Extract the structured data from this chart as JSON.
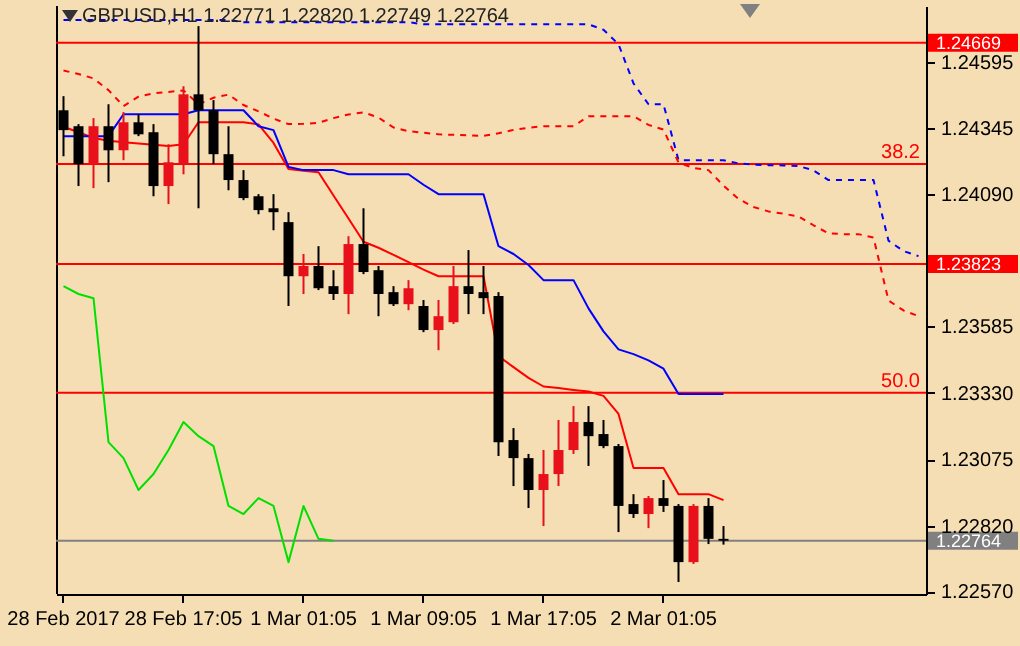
{
  "chart_data": {
    "type": "candlestick",
    "title": "GBPUSD,H1 1.22771 1.22820 1.22749 1.22764",
    "categories": [
      "28 Feb 2017",
      null,
      null,
      null,
      null,
      null,
      null,
      null,
      "28 Feb 17:05",
      null,
      null,
      null,
      null,
      null,
      null,
      null,
      "1 Mar 01:05",
      null,
      null,
      null,
      null,
      null,
      null,
      null,
      "1 Mar 09:05",
      null,
      null,
      null,
      null,
      null,
      null,
      null,
      "1 Mar 17:05",
      null,
      null,
      null,
      null,
      null,
      null,
      null,
      "2 Mar 01:05",
      null,
      null,
      null,
      null,
      null,
      null,
      null,
      null,
      null,
      null,
      null,
      null,
      null,
      null,
      null,
      null,
      null
    ],
    "ohlc": [
      [
        1.24411,
        1.24465,
        1.24235,
        1.24335
      ],
      [
        1.2435,
        1.24358,
        1.24121,
        1.24205
      ],
      [
        1.24205,
        1.24381,
        1.24113,
        1.2435
      ],
      [
        1.2435,
        1.24434,
        1.24136,
        1.24258
      ],
      [
        1.24258,
        1.24404,
        1.2422,
        1.24365
      ],
      [
        1.24365,
        1.24396,
        1.24312,
        1.24319
      ],
      [
        1.24327,
        1.24358,
        1.24082,
        1.24121
      ],
      [
        1.24121,
        1.24281,
        1.24052,
        1.24212
      ],
      [
        1.24205,
        1.24503,
        1.24166,
        1.24472
      ],
      [
        1.24472,
        1.24733,
        1.24036,
        1.24411
      ],
      [
        1.24411,
        1.2445,
        1.24205,
        1.24243
      ],
      [
        1.24243,
        1.2435,
        1.24105,
        1.24144
      ],
      [
        1.24144,
        1.24182,
        1.24067,
        1.24075
      ],
      [
        1.24082,
        1.2409,
        1.24013,
        1.24029
      ],
      [
        1.24036,
        1.2409,
        1.23952,
        1.24021
      ],
      [
        1.23983,
        1.24021,
        1.23662,
        1.23776
      ],
      [
        1.23776,
        1.23861,
        1.23708,
        1.23815
      ],
      [
        1.23815,
        1.23891,
        1.23723,
        1.2373
      ],
      [
        1.23738,
        1.23799,
        1.23685,
        1.23708
      ],
      [
        1.23708,
        1.23929,
        1.23631,
        1.23899
      ],
      [
        1.23899,
        1.24036,
        1.23784,
        1.23792
      ],
      [
        1.23799,
        1.23815,
        1.23623,
        1.23708
      ],
      [
        1.23715,
        1.23738,
        1.23662,
        1.23669
      ],
      [
        1.23669,
        1.23761,
        1.23646,
        1.2373
      ],
      [
        1.23662,
        1.23685,
        1.23562,
        1.2357
      ],
      [
        1.2357,
        1.23685,
        1.23493,
        1.23623
      ],
      [
        1.236,
        1.23815,
        1.23593,
        1.23738
      ],
      [
        1.23738,
        1.23876,
        1.23631,
        1.23708
      ],
      [
        1.23715,
        1.23815,
        1.23631,
        1.23692
      ],
      [
        1.237,
        1.23715,
        1.23088,
        1.23141
      ],
      [
        1.23149,
        1.23195,
        1.22973,
        1.2308
      ],
      [
        1.2308,
        1.23096,
        1.22889,
        1.22958
      ],
      [
        1.22958,
        1.23111,
        1.2282,
        1.23019
      ],
      [
        1.23019,
        1.23226,
        1.22973,
        1.23111
      ],
      [
        1.23111,
        1.23279,
        1.23096,
        1.23218
      ],
      [
        1.23218,
        1.23279,
        1.2305,
        1.23164
      ],
      [
        1.23172,
        1.23226,
        1.23118,
        1.23126
      ],
      [
        1.23126,
        1.23134,
        1.22797,
        1.22897
      ],
      [
        1.22904,
        1.22942,
        1.22851,
        1.22866
      ],
      [
        1.22866,
        1.22935,
        1.22812,
        1.22927
      ],
      [
        1.22927,
        1.22996,
        1.22874,
        1.22897
      ],
      [
        1.22897,
        1.22904,
        1.22606,
        1.22682
      ],
      [
        1.22682,
        1.22904,
        1.22675,
        1.22897
      ],
      [
        1.22897,
        1.22927,
        1.22751,
        1.22771
      ],
      [
        1.22771,
        1.2282,
        1.22749,
        1.22764
      ],
      null,
      null,
      null,
      null,
      null,
      null,
      null,
      null,
      null,
      null,
      null,
      null,
      null
    ],
    "colors": [
      "#000000",
      "#000000",
      "#e8101a",
      "#000000",
      "#e8101a",
      "#000000",
      "#000000",
      "#e8101a",
      "#e8101a",
      "#000000",
      "#000000",
      "#000000",
      "#000000",
      "#000000",
      "#000000",
      "#000000",
      "#e8101a",
      "#000000",
      "#000000",
      "#e8101a",
      "#000000",
      "#000000",
      "#000000",
      "#e8101a",
      "#000000",
      "#e8101a",
      "#e8101a",
      "#000000",
      "#000000",
      "#000000",
      "#000000",
      "#000000",
      "#e8101a",
      "#e8101a",
      "#e8101a",
      "#000000",
      "#000000",
      "#000000",
      "#000000",
      "#e8101a",
      "#000000",
      "#000000",
      "#e8101a",
      "#000000",
      "#000000",
      null,
      null,
      null,
      null,
      null,
      null,
      null,
      null,
      null,
      null,
      null,
      null,
      null
    ],
    "series": [
      {
        "type": "line",
        "color": "#ff0000",
        "line_style": "solid",
        "values": [
          1.24348,
          1.24327,
          1.24305,
          1.24294,
          1.24289,
          1.24284,
          1.24279,
          1.24274,
          1.24281,
          1.24365,
          1.24365,
          1.24365,
          1.24365,
          1.24357,
          1.24286,
          1.24186,
          1.2418,
          1.24174,
          1.24085,
          1.23997,
          1.23908,
          1.23885,
          1.23858,
          1.2383,
          1.23801,
          1.23776,
          1.23776,
          1.23776,
          1.23776,
          1.2347,
          1.23428,
          1.23387,
          1.23354,
          1.23348,
          1.23341,
          1.23335,
          1.23318,
          1.23249,
          1.23042,
          1.23042,
          1.23042,
          1.22942,
          1.22942,
          1.22942,
          1.22919,
          null,
          null,
          null,
          null,
          null,
          null,
          null,
          null,
          null,
          null,
          null,
          null,
          null
        ]
      },
      {
        "type": "line",
        "color": "#0000ff",
        "line_style": "solid",
        "values": [
          1.24312,
          1.24312,
          1.24312,
          1.24312,
          1.24396,
          1.24396,
          1.24396,
          1.24396,
          1.24396,
          1.24411,
          1.24411,
          1.24411,
          1.24411,
          1.2435,
          1.24335,
          1.24194,
          1.24182,
          1.24182,
          1.24182,
          1.24166,
          1.24166,
          1.24166,
          1.24166,
          1.24166,
          1.24126,
          1.2409,
          1.2409,
          1.2409,
          1.2409,
          1.23891,
          1.23861,
          1.23819,
          1.23761,
          1.23761,
          1.23761,
          1.23653,
          1.23565,
          1.23496,
          1.23478,
          1.23454,
          1.23422,
          1.23325,
          1.23325,
          1.23325,
          1.23325,
          null,
          null,
          null,
          null,
          null,
          null,
          null,
          null,
          null,
          null,
          null,
          null,
          null
        ]
      },
      {
        "type": "line",
        "color": "#00e000",
        "line_style": "solid",
        "values": [
          1.23738,
          1.23708,
          1.23692,
          1.23141,
          1.2308,
          1.22958,
          1.23019,
          1.23111,
          1.23218,
          1.23164,
          1.23126,
          1.22897,
          1.22866,
          1.22927,
          1.22897,
          1.22682,
          1.22897,
          1.22771,
          1.22764,
          null,
          null,
          null,
          null,
          null,
          null,
          null,
          null,
          null,
          null,
          null,
          null,
          null,
          null,
          null,
          null,
          null,
          null,
          null,
          null,
          null,
          null,
          null,
          null,
          null,
          null,
          null,
          null,
          null,
          null,
          null,
          null,
          null,
          null,
          null,
          null,
          null,
          null,
          null
        ]
      },
      {
        "type": "line",
        "color": "#0000ff",
        "line_style": "dashed",
        "values": [
          1.24756,
          1.24756,
          1.24756,
          1.24756,
          1.24756,
          1.24756,
          1.24756,
          1.24756,
          1.24756,
          1.24756,
          1.24756,
          1.24756,
          1.24748,
          1.24748,
          1.24748,
          1.24748,
          1.24748,
          1.24748,
          1.24748,
          1.24748,
          1.24748,
          1.24748,
          1.24748,
          1.24748,
          1.2474,
          1.2474,
          1.2474,
          1.2474,
          1.2474,
          1.2474,
          1.2474,
          1.2474,
          1.2474,
          1.2474,
          1.2474,
          1.2474,
          1.24719,
          1.24664,
          1.24514,
          1.24434,
          1.24434,
          1.2422,
          1.2422,
          1.2422,
          1.2422,
          1.24208,
          1.24203,
          1.24201,
          1.242,
          1.24198,
          1.24181,
          1.24144,
          1.24144,
          1.24144,
          1.24144,
          1.23912,
          1.23872,
          1.23853
        ]
      },
      {
        "type": "line",
        "color": "#ff0000",
        "line_style": "dashed",
        "values": [
          1.24563,
          1.2455,
          1.24533,
          1.24488,
          1.24427,
          1.24463,
          1.24476,
          1.24481,
          1.24487,
          1.24434,
          1.24459,
          1.24471,
          1.24431,
          1.24407,
          1.24379,
          1.24358,
          1.24359,
          1.24363,
          1.24381,
          1.24395,
          1.24403,
          1.24383,
          1.24345,
          1.24331,
          1.24325,
          1.24319,
          1.24317,
          1.24315,
          1.24313,
          1.24323,
          1.24336,
          1.24344,
          1.2435,
          1.2435,
          1.2435,
          1.24388,
          1.24388,
          1.24388,
          1.24388,
          1.24355,
          1.24337,
          1.24211,
          1.2419,
          1.24182,
          1.24123,
          1.24072,
          1.24041,
          1.24024,
          1.24015,
          1.24005,
          1.23971,
          1.2394,
          1.23937,
          1.23937,
          1.23924,
          1.23683,
          1.23645,
          1.23623
        ]
      }
    ],
    "ref_lines": [
      {
        "axis": "y",
        "value": 1.24669,
        "label": "1.24669",
        "color": "#ff0000"
      },
      {
        "axis": "y",
        "value": 1.24205,
        "color": "#ff0000"
      },
      {
        "axis": "y",
        "value": 1.23823,
        "label": "1.23823",
        "color": "#ff0000"
      },
      {
        "axis": "y",
        "value": 1.2333,
        "color": "#ff0000"
      },
      {
        "axis": "y",
        "value": 1.22764,
        "label": "1.22764",
        "color": "#808080"
      }
    ],
    "annotations": [
      "38.2",
      "50.0"
    ],
    "ylim": [
      1.2256,
      1.2481
    ],
    "yticks": [
      {
        "value": 1.2257,
        "label": "1.22570"
      },
      {
        "value": 1.2282,
        "label": "1.22820"
      },
      {
        "value": 1.23075,
        "label": "1.23075"
      },
      {
        "value": 1.2333,
        "label": "1.23330"
      },
      {
        "value": 1.23585,
        "label": "1.23585"
      },
      {
        "value": 1.2409,
        "label": "1.24090"
      },
      {
        "value": 1.24345,
        "label": "1.24345"
      },
      {
        "value": 1.24595,
        "label": "1.24595"
      }
    ]
  }
}
